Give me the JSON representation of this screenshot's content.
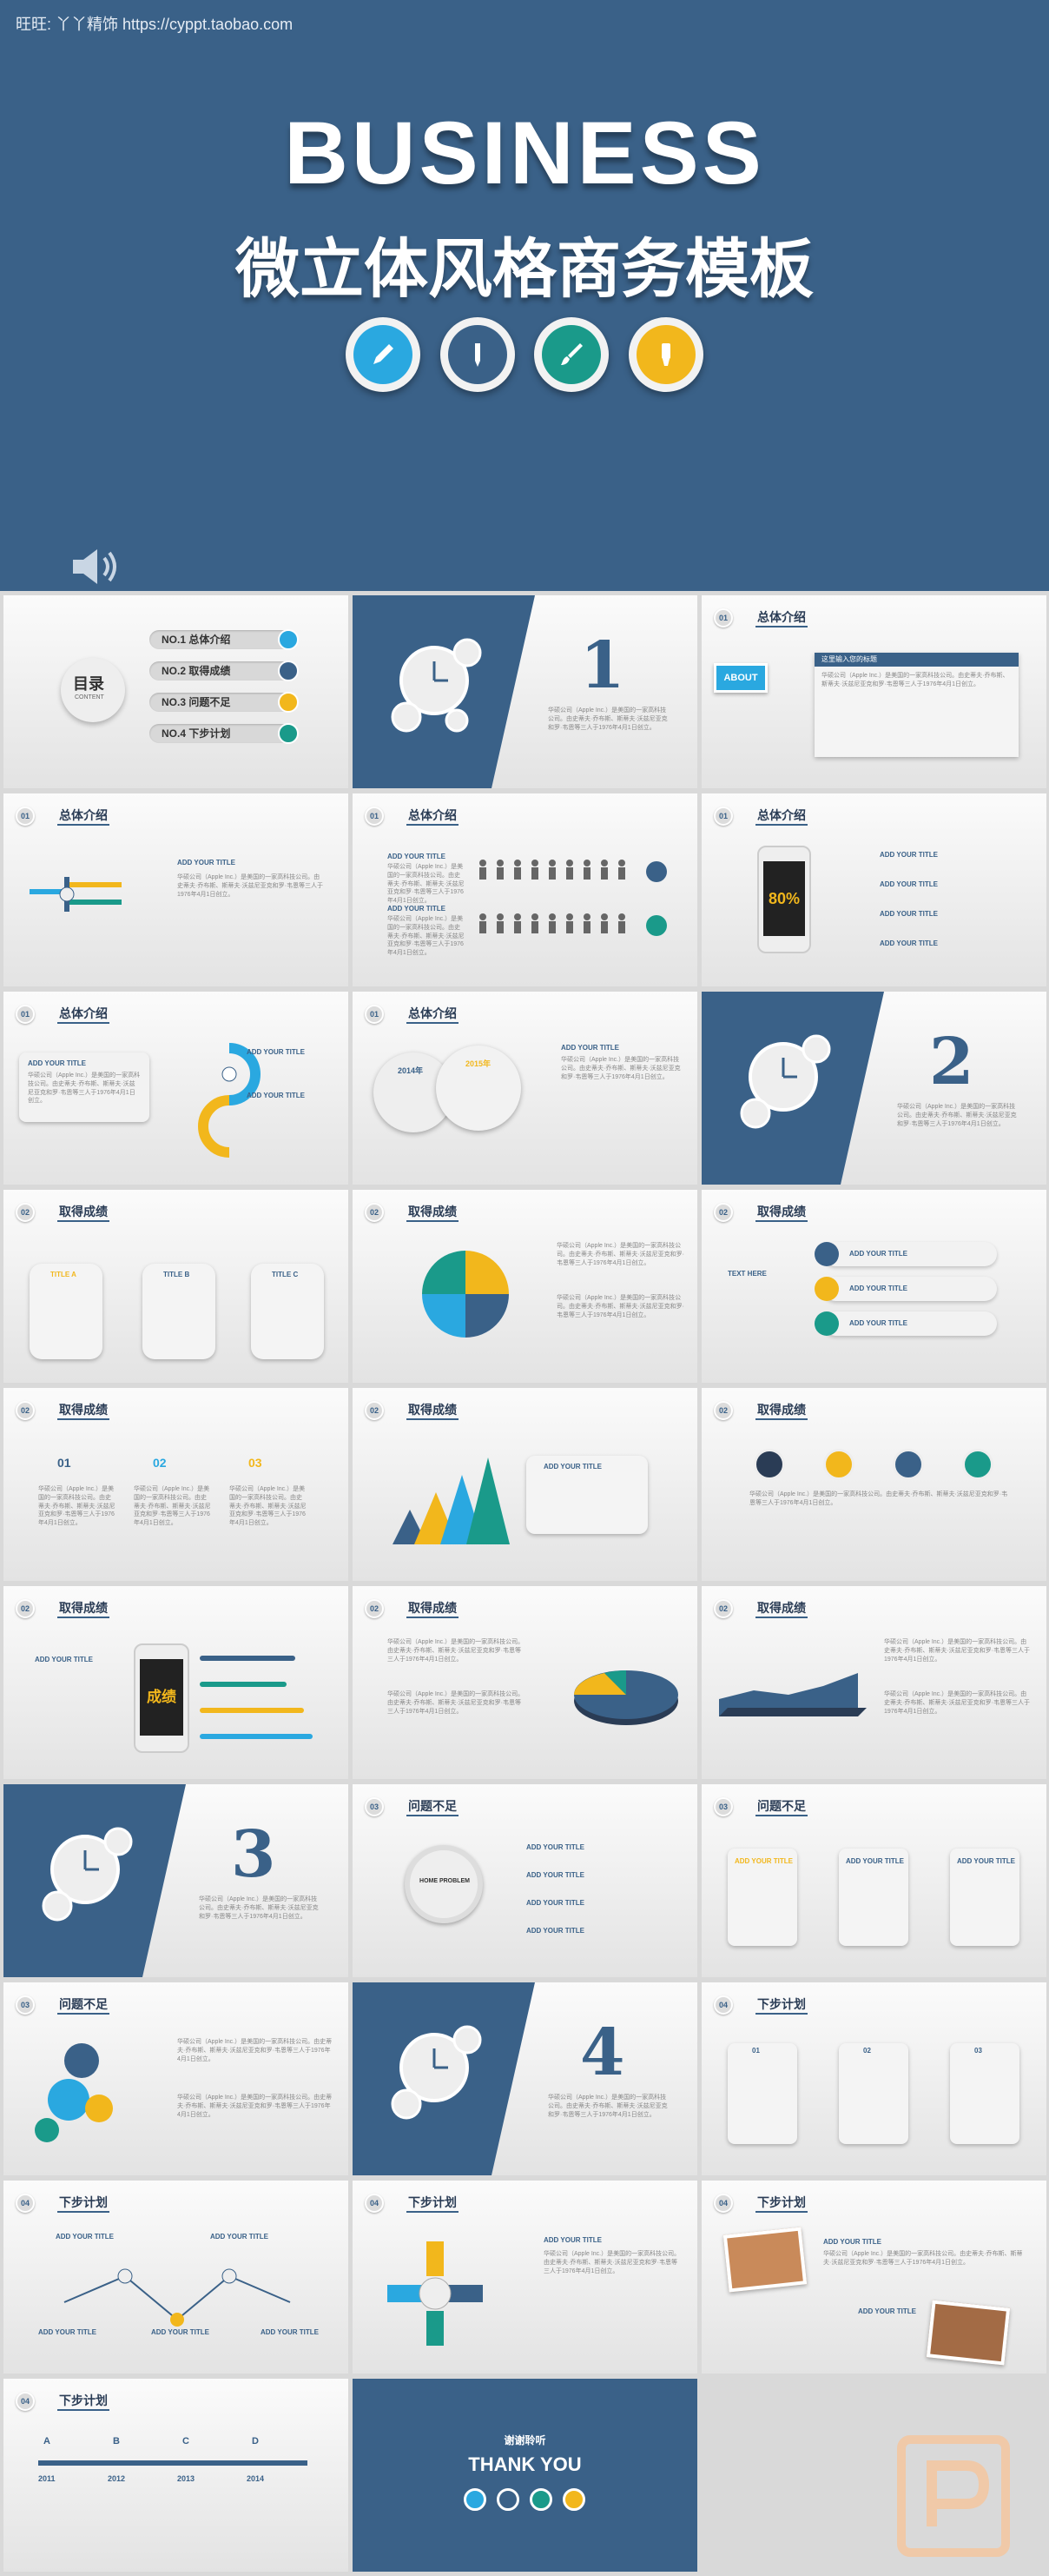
{
  "hero": {
    "shop_label": "旺旺: 丫丫精饰 https://cyppt.taobao.com",
    "title_en": "BUSINESS",
    "title_cn": "微立体风格商务模板",
    "tool_icons": [
      "pencil-icon",
      "pen-icon",
      "brush-icon",
      "marker-icon"
    ],
    "tool_colors": [
      "#2aa8e0",
      "#3a6188",
      "#1a9a8a",
      "#f2b71c"
    ]
  },
  "toc": {
    "label": "目录",
    "sub": "CONTENT",
    "items": [
      "NO.1 总体介绍",
      "NO.2 取得成绩",
      "NO.3 问题不足",
      "NO.4 下步计划"
    ]
  },
  "sections": {
    "one": "总体介绍",
    "two": "取得成绩",
    "three": "问题不足",
    "four": "下步计划"
  },
  "section_numbers": [
    "1",
    "2",
    "3",
    "4"
  ],
  "slide_nums": [
    "01",
    "02",
    "03",
    "04"
  ],
  "about": {
    "btn": "ABOUT",
    "heading": "这里输入您的标题"
  },
  "labels": {
    "add_title": "ADD YOUR TITLE",
    "percent_80": "80%",
    "year_2014": "2014年",
    "year_2015": "2015年",
    "title_a": "TITLE A",
    "title_b": "TITLE B",
    "title_c": "TITLE C",
    "text_here": "TEXT HERE",
    "home_problem": "HOME PROBLEM",
    "chengji": "成绩",
    "step_01": "01",
    "step_02": "02",
    "step_03": "03",
    "timeline": [
      "A",
      "B",
      "C",
      "D"
    ],
    "timeline_years": [
      "2011",
      "2012",
      "2013",
      "2014"
    ],
    "thanks_cn": "谢谢聆听",
    "thanks_en": "THANK YOU"
  },
  "body_text": "华硕公司（Apple Inc.）是美国的一家高科技公司。由史蒂夫·乔布斯、斯蒂夫·沃兹尼亚克和罗·韦恩等三人于1976年4月1日创立。"
}
